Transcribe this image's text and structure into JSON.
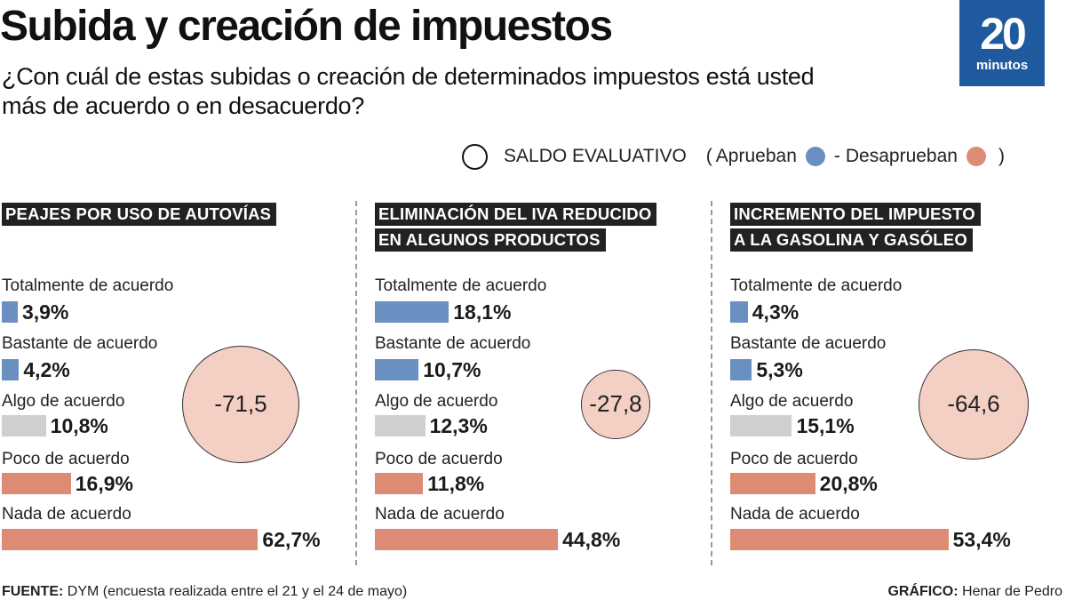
{
  "header": {
    "title": "Subida y creación de impuestos",
    "subtitle": "¿Con cuál de estas subidas o creación de determinados impuestos está usted más de acuerdo o en desacuerdo?"
  },
  "logo": {
    "number": "20",
    "word": "minutos",
    "color": "#1f5a9e"
  },
  "legend": {
    "ring_label": "SALDO EVALUATIVO",
    "open_paren": "(",
    "approve_label": "Aprueban",
    "separator": "-",
    "disapprove_label": "Desaprueban",
    "close_paren": ")"
  },
  "colors": {
    "approve": "#6a8fc1",
    "neutral": "#d0d0d0",
    "disapprove": "#de8b76",
    "saldo_fill": "#f4cfc4"
  },
  "chart_data": [
    {
      "type": "bar",
      "title_lines": [
        "PEAJES POR USO DE AUTOVÍAS"
      ],
      "categories": [
        "Totalmente de acuerdo",
        "Bastante de acuerdo",
        "Algo de acuerdo",
        "Poco de acuerdo",
        "Nada de acuerdo"
      ],
      "values": [
        3.9,
        4.2,
        10.8,
        16.9,
        62.7
      ],
      "value_labels": [
        "3,9%",
        "4,2%",
        "10,8%",
        "16,9%",
        "62,7%"
      ],
      "saldo_evaluativo": -71.5,
      "saldo_label": "-71,5"
    },
    {
      "type": "bar",
      "title_lines": [
        "ELIMINACIÓN DEL IVA REDUCIDO",
        "EN ALGUNOS PRODUCTOS"
      ],
      "categories": [
        "Totalmente de acuerdo",
        "Bastante de acuerdo",
        "Algo de acuerdo",
        "Poco de acuerdo",
        "Nada de acuerdo"
      ],
      "values": [
        18.1,
        10.7,
        12.3,
        11.8,
        44.8
      ],
      "value_labels": [
        "18,1%",
        "10,7%",
        "12,3%",
        "11,8%",
        "44,8%"
      ],
      "saldo_evaluativo": -27.8,
      "saldo_label": "-27,8"
    },
    {
      "type": "bar",
      "title_lines": [
        "INCREMENTO DEL IMPUESTO",
        "A LA GASOLINA Y GASÓLEO"
      ],
      "categories": [
        "Totalmente de acuerdo",
        "Bastante de acuerdo",
        "Algo de acuerdo",
        "Poco de acuerdo",
        "Nada de acuerdo"
      ],
      "values": [
        4.3,
        5.3,
        15.1,
        20.8,
        53.4
      ],
      "value_labels": [
        "4,3%",
        "5,3%",
        "15,1%",
        "20,8%",
        "53,4%"
      ],
      "saldo_evaluativo": -64.6,
      "saldo_label": "-64,6"
    }
  ],
  "footer": {
    "source_label": "FUENTE:",
    "source_text": "DYM (encuesta realizada entre el 21 y el 24 de mayo)",
    "credit_label": "GRÁFICO:",
    "credit_text": "Henar de Pedro"
  }
}
